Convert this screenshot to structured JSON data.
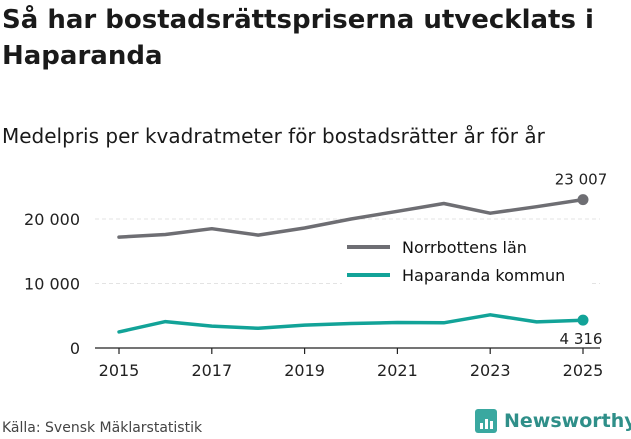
{
  "title": "Så har bostadsrättspriserna utvecklats i Haparanda",
  "subtitle": "Medelpris per kvadratmeter för bostadsrätter år för år",
  "source": "Källa: Svensk Mäklarstatistik",
  "brand": {
    "name": "Newsworthy",
    "color": "#3aa8a0",
    "icon": "bar-chart-icon"
  },
  "chart_data": {
    "type": "line",
    "title": "Så har bostadsrättspriserna utvecklats i Haparanda",
    "subtitle": "Medelpris per kvadratmeter för bostadsrätter år för år",
    "xlabel": "",
    "ylabel": "",
    "x": [
      2015,
      2016,
      2017,
      2018,
      2019,
      2020,
      2021,
      2022,
      2023,
      2024,
      2025
    ],
    "xticks": [
      "2015",
      "2017",
      "2019",
      "2021",
      "2023",
      "2025"
    ],
    "xticks_values": [
      2015,
      2017,
      2019,
      2021,
      2023,
      2025
    ],
    "yticks": [
      "0",
      "10 000",
      "20 000"
    ],
    "yticks_values": [
      0,
      10000,
      20000
    ],
    "ylim": [
      0,
      25000
    ],
    "grid": "horizontal",
    "legend_position": "right",
    "series": [
      {
        "name": "Norrbottens län",
        "color": "#6e6e73",
        "values": [
          17200,
          17600,
          18500,
          17500,
          18600,
          20000,
          21200,
          22400,
          20900,
          21900,
          23007
        ],
        "end_label": "23 007"
      },
      {
        "name": "Haparanda kommun",
        "color": "#12a398",
        "values": [
          2500,
          4100,
          3400,
          3050,
          3550,
          3800,
          3950,
          3900,
          5150,
          4050,
          4316
        ],
        "end_label": "4 316"
      }
    ]
  }
}
